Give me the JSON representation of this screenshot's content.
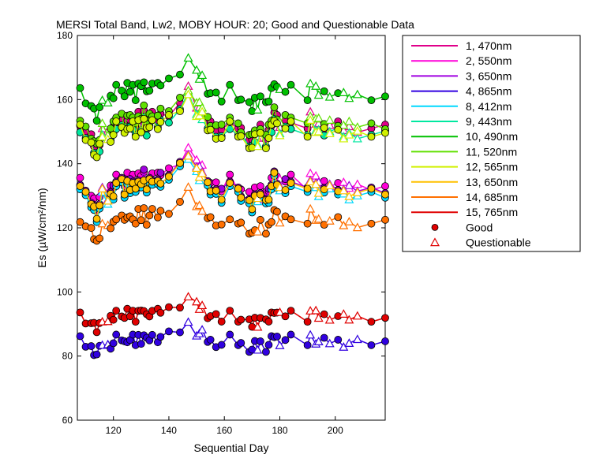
{
  "chart_data": {
    "type": "line",
    "title": "MERSI Total Band,  Lw2, MOBY HOUR: 20;  Good and Questionable Data",
    "xlabel": "Sequential Day",
    "ylabel": "Es (µW/cm²/nm)",
    "xlim": [
      107,
      218
    ],
    "ylim": [
      60,
      180
    ],
    "xticks": [
      120,
      140,
      160,
      180,
      200
    ],
    "yticks": [
      60,
      80,
      100,
      120,
      140,
      160,
      180
    ],
    "days": [
      108,
      110,
      112,
      113,
      114,
      115,
      116,
      118,
      119,
      120,
      121,
      123,
      124,
      125,
      126,
      127,
      128,
      129,
      130,
      131,
      132,
      133,
      134,
      136,
      137,
      140,
      144,
      147,
      150,
      151,
      152,
      154,
      155,
      157,
      159,
      162,
      165,
      166,
      169,
      170,
      171,
      172,
      173,
      175,
      176,
      177,
      178,
      179,
      180,
      182,
      184,
      190,
      191,
      193,
      194,
      196,
      198,
      201,
      203,
      205,
      208,
      213,
      218
    ],
    "questionable": [
      0,
      0,
      0,
      0,
      0,
      0,
      1,
      1,
      0,
      0,
      0,
      0,
      0,
      0,
      0,
      0,
      0,
      0,
      0,
      0,
      0,
      0,
      0,
      0,
      0,
      0,
      0,
      1,
      1,
      1,
      1,
      0,
      0,
      0,
      0,
      0,
      0,
      0,
      0,
      0,
      0,
      1,
      0,
      0,
      0,
      0,
      0,
      0,
      1,
      0,
      0,
      0,
      1,
      1,
      1,
      0,
      1,
      0,
      1,
      1,
      1,
      0,
      0
    ],
    "series": [
      {
        "name": "1, 470nm",
        "color": "#e0008a",
        "base": 153
      },
      {
        "name": "2, 550nm",
        "color": "#ff00d8",
        "base": 135
      },
      {
        "name": "3, 650nm",
        "color": "#a000e0",
        "base": 134
      },
      {
        "name": "4, 865nm",
        "color": "#3000e0",
        "base": 85
      },
      {
        "name": "8, 412nm",
        "color": "#00d8ff",
        "base": 132
      },
      {
        "name": "9, 443nm",
        "color": "#00e8a0",
        "base": 151
      },
      {
        "name": "10, 490nm",
        "color": "#00c000",
        "base": 163
      },
      {
        "name": "11, 520nm",
        "color": "#60e000",
        "base": 154
      },
      {
        "name": "12, 565nm",
        "color": "#d0f000",
        "base": 151
      },
      {
        "name": "13, 650nm",
        "color": "#ffc000",
        "base": 133
      },
      {
        "name": "14, 685nm",
        "color": "#ff7000",
        "base": 123
      },
      {
        "name": "15, 765nm",
        "color": "#e00000",
        "base": 93
      }
    ],
    "offsets": [
      0,
      -3,
      -5,
      -7,
      -9,
      -6,
      -2,
      -4,
      -3,
      -2,
      1,
      1,
      -2,
      1,
      0,
      1,
      -2,
      2,
      0,
      3,
      -1,
      1,
      2,
      1,
      2,
      3,
      6,
      10,
      5,
      4,
      4,
      0,
      -1,
      -2,
      -3,
      1,
      -2,
      -3,
      -5,
      -6,
      -3,
      -5,
      -2,
      -5,
      -3,
      0,
      3,
      1,
      -1,
      0,
      1,
      -2,
      2,
      0,
      -1,
      -1,
      -1,
      -1,
      -2,
      -2,
      -2,
      -2,
      -2
    ],
    "legend": {
      "series_labels": [
        "1, 470nm",
        "2, 550nm",
        "3, 650nm",
        "4, 865nm",
        "8, 412nm",
        "9, 443nm",
        "10, 490nm",
        "11, 520nm",
        "12, 565nm",
        "13, 650nm",
        "14, 685nm",
        "15, 765nm"
      ],
      "good_label": "Good",
      "questionable_label": "Questionable",
      "placement": "right-outside"
    }
  }
}
